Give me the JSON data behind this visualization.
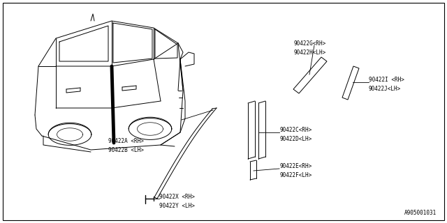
{
  "bg_color": "#ffffff",
  "watermark": "A905001031",
  "font_size": 5.5,
  "line_color": "#000000",
  "labels": {
    "AB": "90422A <RH>\n90422B <LH>",
    "XY": "90422X <RH>\n90422Y <LH>",
    "CD": "90422C<RH>\n90422D<LH>",
    "EF": "90422E<RH>\n90422F<LH>",
    "GH": "90422G<RH>\n90422H<LH>",
    "IJ": "90422I <RH>\n90422J<LH>"
  }
}
